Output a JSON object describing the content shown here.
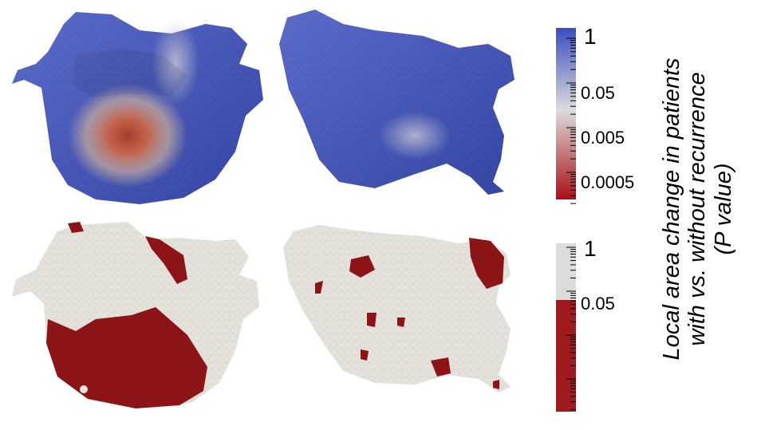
{
  "colorbar_top": {
    "ticks": [
      "1",
      "0.05",
      "0.005",
      "0.0005"
    ],
    "colors": [
      "#3a4cc0",
      "#dcdcdc",
      "#a80f15"
    ]
  },
  "colorbar_bottom": {
    "ticks": [
      "1",
      "0.05"
    ],
    "colors": [
      "#dcdcdc",
      "#a0191c"
    ]
  },
  "side_title": {
    "line1": "Local area change in patients",
    "line2": "with vs. without recurrence",
    "line3": "(P value)"
  },
  "mesh_colors": {
    "blue": "#3f52c2",
    "grey": "#e6e3dd",
    "red": "#8c1416",
    "hot": "#b24434"
  }
}
